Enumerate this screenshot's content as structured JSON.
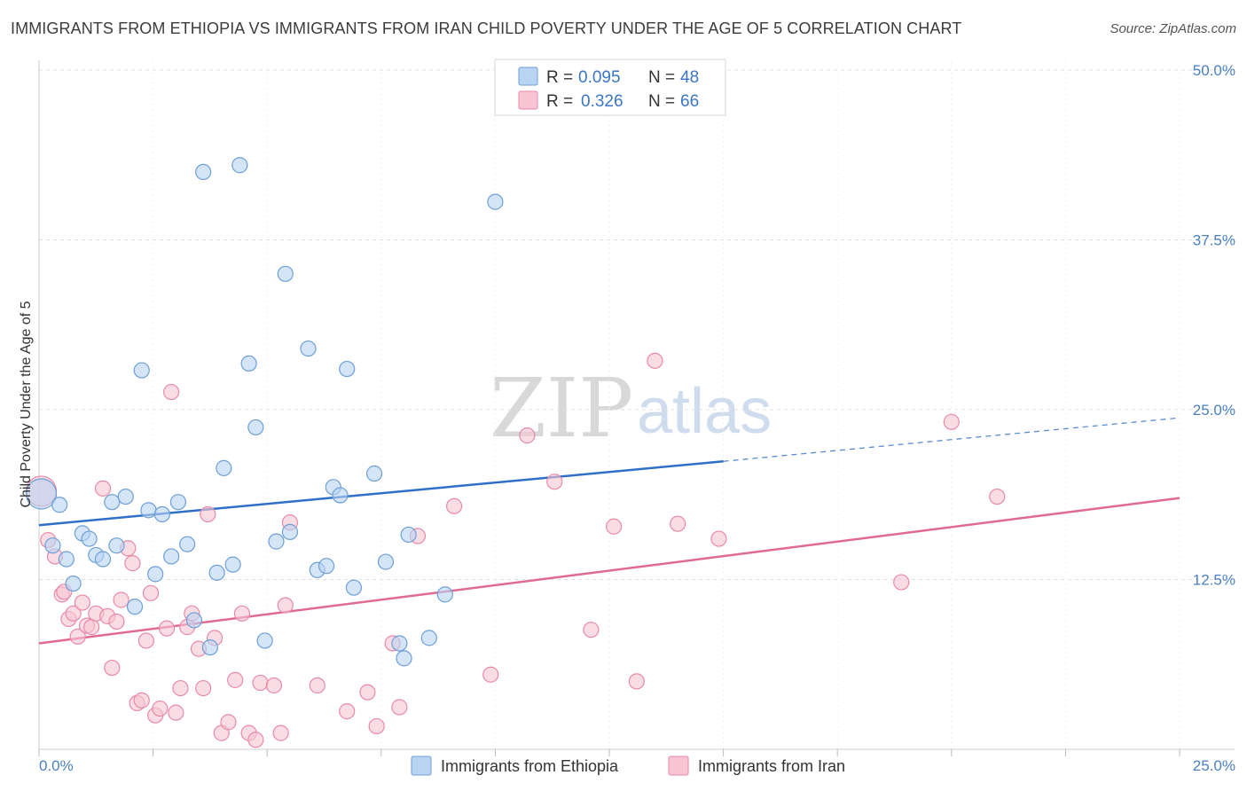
{
  "header": {
    "title": "IMMIGRANTS FROM ETHIOPIA VS IMMIGRANTS FROM IRAN CHILD POVERTY UNDER THE AGE OF 5 CORRELATION CHART",
    "source": "Source: ZipAtlas.com"
  },
  "watermark": {
    "zip": "ZIP",
    "atlas": "atlas"
  },
  "legend": {
    "ethiopia": {
      "r_label": "R = ",
      "r_value": "0.095",
      "n_label": "N = ",
      "n_value": "48"
    },
    "iran": {
      "r_label": "R = ",
      "r_value": "0.326",
      "n_label": "N = ",
      "n_value": "66"
    }
  },
  "bottom_legend": {
    "ethiopia": "Immigrants from Ethiopia",
    "iran": "Immigrants from Iran"
  },
  "colors": {
    "ethiopia_fill": "#b9d3f3",
    "ethiopia_stroke": "#6d9fd6",
    "ethiopia_line": "#2f6fc8",
    "iran_fill": "#f7c4d4",
    "iran_stroke": "#e88aa8",
    "iran_line": "#e06a93",
    "grid": "#e0e0e0",
    "tick_text": "#4a7fc1"
  },
  "chart_data": {
    "type": "scatter",
    "title": "IMMIGRANTS FROM ETHIOPIA VS IMMIGRANTS FROM IRAN CHILD POVERTY UNDER THE AGE OF 5 CORRELATION CHART",
    "xlabel": "",
    "ylabel": "Child Poverty Under the Age of 5",
    "xlim": [
      0,
      25
    ],
    "ylim": [
      0,
      50
    ],
    "x_tick_labels": [
      "0.0%",
      "25.0%"
    ],
    "y_ticks": [
      12.5,
      25.0,
      37.5,
      50.0
    ],
    "y_tick_labels": [
      "12.5%",
      "25.0%",
      "37.5%",
      "50.0%"
    ],
    "grid": true,
    "legend_position": "top-center",
    "series": [
      {
        "name": "Immigrants from Ethiopia",
        "r": 0.095,
        "n": 48,
        "trend": {
          "x_start": 0,
          "y_start": 16.5,
          "x_solid_end": 15.0,
          "y_solid_end": 21.2,
          "x_end": 25,
          "y_end": 24.4
        },
        "points": [
          {
            "x": 0.05,
            "y": 18.8,
            "big": true
          },
          {
            "x": 0.45,
            "y": 18.0
          },
          {
            "x": 0.3,
            "y": 15.0
          },
          {
            "x": 0.6,
            "y": 14.0
          },
          {
            "x": 0.75,
            "y": 12.2
          },
          {
            "x": 0.95,
            "y": 15.9
          },
          {
            "x": 1.1,
            "y": 15.5
          },
          {
            "x": 1.25,
            "y": 14.3
          },
          {
            "x": 1.4,
            "y": 14.0
          },
          {
            "x": 1.6,
            "y": 18.2
          },
          {
            "x": 1.7,
            "y": 15.0
          },
          {
            "x": 1.9,
            "y": 18.6
          },
          {
            "x": 2.1,
            "y": 10.5
          },
          {
            "x": 2.25,
            "y": 27.9
          },
          {
            "x": 2.4,
            "y": 17.6
          },
          {
            "x": 2.55,
            "y": 12.9
          },
          {
            "x": 2.7,
            "y": 17.3
          },
          {
            "x": 2.9,
            "y": 14.2
          },
          {
            "x": 3.05,
            "y": 18.2
          },
          {
            "x": 3.25,
            "y": 15.1
          },
          {
            "x": 3.4,
            "y": 9.5
          },
          {
            "x": 3.6,
            "y": 42.5
          },
          {
            "x": 3.75,
            "y": 7.5
          },
          {
            "x": 3.9,
            "y": 13.0
          },
          {
            "x": 4.05,
            "y": 20.7
          },
          {
            "x": 4.25,
            "y": 13.6
          },
          {
            "x": 4.4,
            "y": 43.0
          },
          {
            "x": 4.6,
            "y": 28.4
          },
          {
            "x": 4.75,
            "y": 23.7
          },
          {
            "x": 4.95,
            "y": 8.0
          },
          {
            "x": 5.2,
            "y": 15.3
          },
          {
            "x": 5.4,
            "y": 35.0
          },
          {
            "x": 5.5,
            "y": 16.0
          },
          {
            "x": 5.9,
            "y": 29.5
          },
          {
            "x": 6.1,
            "y": 13.2
          },
          {
            "x": 6.3,
            "y": 13.5
          },
          {
            "x": 6.45,
            "y": 19.3
          },
          {
            "x": 6.6,
            "y": 18.7
          },
          {
            "x": 6.75,
            "y": 28.0
          },
          {
            "x": 6.9,
            "y": 11.9
          },
          {
            "x": 7.35,
            "y": 20.3
          },
          {
            "x": 7.6,
            "y": 13.8
          },
          {
            "x": 7.9,
            "y": 7.8
          },
          {
            "x": 8.0,
            "y": 6.7
          },
          {
            "x": 8.1,
            "y": 15.8
          },
          {
            "x": 8.55,
            "y": 8.2
          },
          {
            "x": 8.9,
            "y": 11.4
          },
          {
            "x": 10.0,
            "y": 40.3
          }
        ]
      },
      {
        "name": "Immigrants from Iran",
        "r": 0.326,
        "n": 66,
        "trend": {
          "x_start": 0,
          "y_start": 7.8,
          "x_end": 25,
          "y_end": 18.5
        },
        "points": [
          {
            "x": 0.05,
            "y": 19.0,
            "big": true
          },
          {
            "x": 0.2,
            "y": 15.4
          },
          {
            "x": 0.35,
            "y": 14.2
          },
          {
            "x": 0.5,
            "y": 11.4
          },
          {
            "x": 0.55,
            "y": 11.6
          },
          {
            "x": 0.65,
            "y": 9.6
          },
          {
            "x": 0.75,
            "y": 10.0
          },
          {
            "x": 0.85,
            "y": 8.3
          },
          {
            "x": 0.95,
            "y": 10.8
          },
          {
            "x": 1.05,
            "y": 9.1
          },
          {
            "x": 1.15,
            "y": 9.0
          },
          {
            "x": 1.25,
            "y": 10.0
          },
          {
            "x": 1.4,
            "y": 19.2
          },
          {
            "x": 1.5,
            "y": 9.8
          },
          {
            "x": 1.6,
            "y": 6.0
          },
          {
            "x": 1.7,
            "y": 9.4
          },
          {
            "x": 1.8,
            "y": 11.0
          },
          {
            "x": 1.95,
            "y": 14.8
          },
          {
            "x": 2.05,
            "y": 13.7
          },
          {
            "x": 2.15,
            "y": 3.4
          },
          {
            "x": 2.25,
            "y": 3.6
          },
          {
            "x": 2.35,
            "y": 8.0
          },
          {
            "x": 2.45,
            "y": 11.5
          },
          {
            "x": 2.55,
            "y": 2.5
          },
          {
            "x": 2.65,
            "y": 3.0
          },
          {
            "x": 2.8,
            "y": 8.9
          },
          {
            "x": 2.9,
            "y": 26.3
          },
          {
            "x": 3.0,
            "y": 2.7
          },
          {
            "x": 3.1,
            "y": 4.5
          },
          {
            "x": 3.25,
            "y": 9.0
          },
          {
            "x": 3.35,
            "y": 10.0
          },
          {
            "x": 3.5,
            "y": 7.4
          },
          {
            "x": 3.6,
            "y": 4.5
          },
          {
            "x": 3.7,
            "y": 17.3
          },
          {
            "x": 3.85,
            "y": 8.2
          },
          {
            "x": 4.0,
            "y": 1.2
          },
          {
            "x": 4.15,
            "y": 2.0
          },
          {
            "x": 4.3,
            "y": 5.1
          },
          {
            "x": 4.45,
            "y": 10.0
          },
          {
            "x": 4.6,
            "y": 1.2
          },
          {
            "x": 4.75,
            "y": 0.7
          },
          {
            "x": 4.85,
            "y": 4.9
          },
          {
            "x": 5.15,
            "y": 4.7
          },
          {
            "x": 5.3,
            "y": 1.2
          },
          {
            "x": 5.4,
            "y": 10.6
          },
          {
            "x": 5.5,
            "y": 16.7
          },
          {
            "x": 6.1,
            "y": 4.7
          },
          {
            "x": 6.75,
            "y": 2.8
          },
          {
            "x": 7.2,
            "y": 4.2
          },
          {
            "x": 7.4,
            "y": 1.7
          },
          {
            "x": 7.75,
            "y": 7.8
          },
          {
            "x": 7.9,
            "y": 3.1
          },
          {
            "x": 8.3,
            "y": 15.7
          },
          {
            "x": 9.1,
            "y": 17.9
          },
          {
            "x": 9.9,
            "y": 5.5
          },
          {
            "x": 10.7,
            "y": 23.1
          },
          {
            "x": 11.3,
            "y": 19.7
          },
          {
            "x": 12.1,
            "y": 8.8
          },
          {
            "x": 12.6,
            "y": 16.4
          },
          {
            "x": 13.1,
            "y": 5.0
          },
          {
            "x": 13.5,
            "y": 28.6
          },
          {
            "x": 14.0,
            "y": 16.6
          },
          {
            "x": 14.9,
            "y": 15.5
          },
          {
            "x": 18.9,
            "y": 12.3
          },
          {
            "x": 20.0,
            "y": 24.1
          },
          {
            "x": 21.0,
            "y": 18.6
          }
        ]
      }
    ]
  }
}
